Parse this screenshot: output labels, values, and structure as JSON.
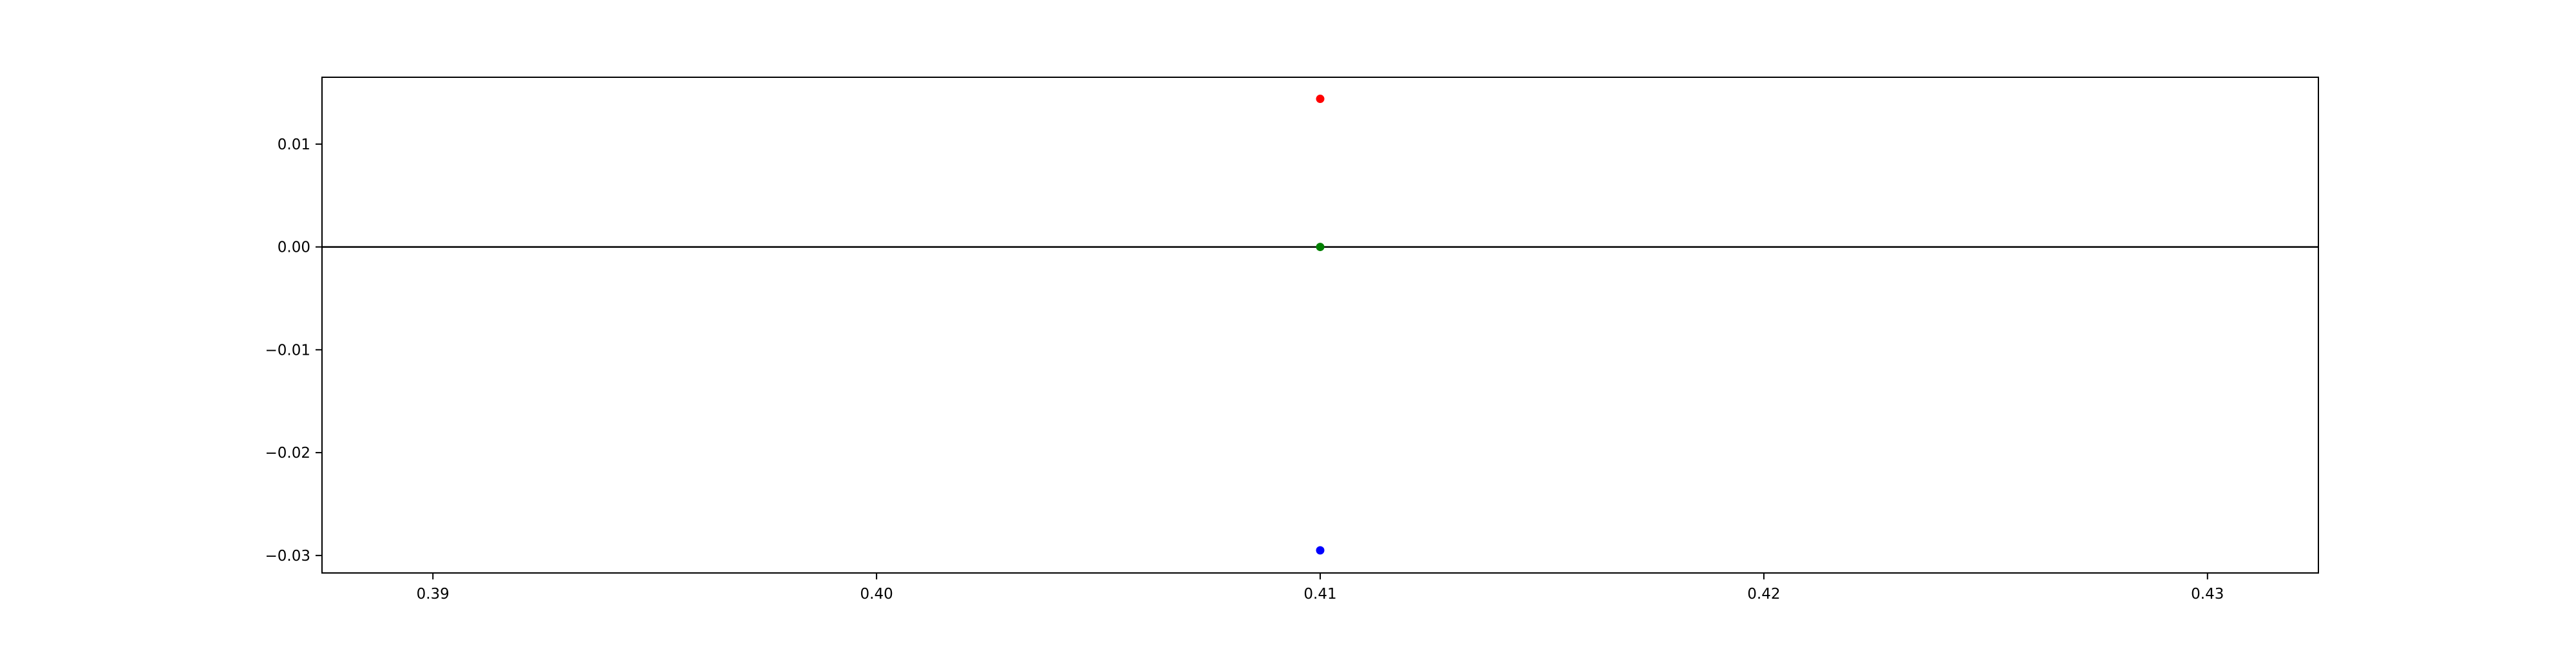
{
  "chart_data": {
    "type": "scatter",
    "title": "",
    "xlabel": "",
    "ylabel": "",
    "xlim": [
      0.3875,
      0.4325
    ],
    "ylim": [
      -0.0317,
      0.0165
    ],
    "x_ticks": [
      0.39,
      0.4,
      0.41,
      0.42,
      0.43
    ],
    "x_tick_labels": [
      "0.39",
      "0.40",
      "0.41",
      "0.42",
      "0.43"
    ],
    "y_ticks": [
      0.01,
      0.0,
      -0.01,
      -0.02,
      -0.03
    ],
    "y_tick_labels": [
      "0.01",
      "0.00",
      "−0.01",
      "−0.02",
      "−0.03"
    ],
    "grid": false,
    "legend": "none",
    "reference_lines": [
      {
        "orientation": "horizontal",
        "y": 0.0,
        "color": "#000000"
      }
    ],
    "series": [
      {
        "color": "#ff0000",
        "points": [
          {
            "x": 0.41,
            "y": 0.0144
          }
        ]
      },
      {
        "color": "#008000",
        "points": [
          {
            "x": 0.41,
            "y": 0.0
          }
        ]
      },
      {
        "color": "#0000ff",
        "points": [
          {
            "x": 0.41,
            "y": -0.0295
          }
        ]
      }
    ]
  }
}
